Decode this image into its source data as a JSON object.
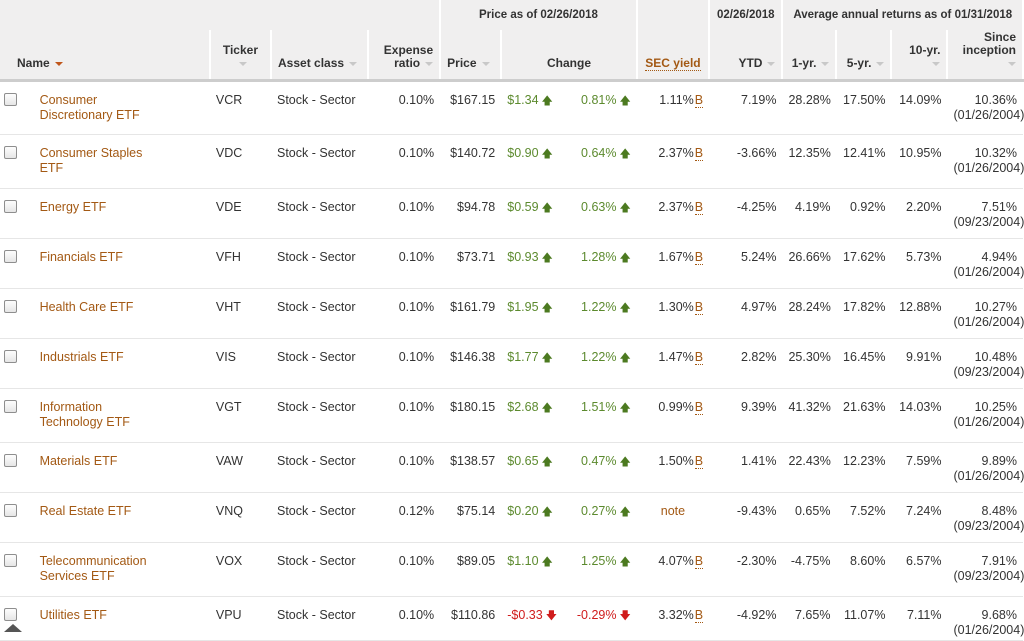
{
  "header": {
    "price_group": "Price as of 02/26/2018",
    "ytd_group": "02/26/2018",
    "returns_group": "Average annual returns as of 01/31/2018",
    "columns": {
      "name": "Name",
      "ticker": "Ticker",
      "asset_class": "Asset class",
      "expense_line1": "Expense",
      "expense_line2": "ratio",
      "price": "Price",
      "change": "Change",
      "sec_yield": "SEC yield",
      "ytd": "YTD",
      "r1": "1-yr.",
      "r5": "5-yr.",
      "r10": "10-yr.",
      "inception_line1": "Since",
      "inception_line2": "inception"
    }
  },
  "colors": {
    "accent": "#a35914",
    "up": "#5c8a2e",
    "down": "#d01c1c",
    "header_bg": "#f0efef"
  },
  "rows": [
    {
      "name_l1": "Consumer",
      "name_l2": "Discretionary ETF",
      "ticker": "VCR",
      "asset": "Stock - Sector",
      "expense": "0.10%",
      "price": "$167.15",
      "chg": "$1.34",
      "chg_pct": "0.81%",
      "dir": "up",
      "sec": "1.11%",
      "sec_b": "B",
      "ytd": "7.19%",
      "r1": "28.28%",
      "r5": "17.50%",
      "r10": "14.09%",
      "inc": "10.36%",
      "inc_date": "(01/26/2004)"
    },
    {
      "name_l1": "Consumer Staples",
      "name_l2": "ETF",
      "ticker": "VDC",
      "asset": "Stock - Sector",
      "expense": "0.10%",
      "price": "$140.72",
      "chg": "$0.90",
      "chg_pct": "0.64%",
      "dir": "up",
      "sec": "2.37%",
      "sec_b": "B",
      "ytd": "-3.66%",
      "r1": "12.35%",
      "r5": "12.41%",
      "r10": "10.95%",
      "inc": "10.32%",
      "inc_date": "(01/26/2004)"
    },
    {
      "name_l1": "Energy ETF",
      "name_l2": "",
      "ticker": "VDE",
      "asset": "Stock - Sector",
      "expense": "0.10%",
      "price": "$94.78",
      "chg": "$0.59",
      "chg_pct": "0.63%",
      "dir": "up",
      "sec": "2.37%",
      "sec_b": "B",
      "ytd": "-4.25%",
      "r1": "4.19%",
      "r5": "0.92%",
      "r10": "2.20%",
      "inc": "7.51%",
      "inc_date": "(09/23/2004)"
    },
    {
      "name_l1": "Financials ETF",
      "name_l2": "",
      "ticker": "VFH",
      "asset": "Stock - Sector",
      "expense": "0.10%",
      "price": "$73.71",
      "chg": "$0.93",
      "chg_pct": "1.28%",
      "dir": "up",
      "sec": "1.67%",
      "sec_b": "B",
      "ytd": "5.24%",
      "r1": "26.66%",
      "r5": "17.62%",
      "r10": "5.73%",
      "inc": "4.94%",
      "inc_date": "(01/26/2004)"
    },
    {
      "name_l1": "Health Care ETF",
      "name_l2": "",
      "ticker": "VHT",
      "asset": "Stock - Sector",
      "expense": "0.10%",
      "price": "$161.79",
      "chg": "$1.95",
      "chg_pct": "1.22%",
      "dir": "up",
      "sec": "1.30%",
      "sec_b": "B",
      "ytd": "4.97%",
      "r1": "28.24%",
      "r5": "17.82%",
      "r10": "12.88%",
      "inc": "10.27%",
      "inc_date": "(01/26/2004)"
    },
    {
      "name_l1": "Industrials ETF",
      "name_l2": "",
      "ticker": "VIS",
      "asset": "Stock - Sector",
      "expense": "0.10%",
      "price": "$146.38",
      "chg": "$1.77",
      "chg_pct": "1.22%",
      "dir": "up",
      "sec": "1.47%",
      "sec_b": "B",
      "ytd": "2.82%",
      "r1": "25.30%",
      "r5": "16.45%",
      "r10": "9.91%",
      "inc": "10.48%",
      "inc_date": "(09/23/2004)"
    },
    {
      "name_l1": "Information",
      "name_l2": "Technology ETF",
      "ticker": "VGT",
      "asset": "Stock - Sector",
      "expense": "0.10%",
      "price": "$180.15",
      "chg": "$2.68",
      "chg_pct": "1.51%",
      "dir": "up",
      "sec": "0.99%",
      "sec_b": "B",
      "ytd": "9.39%",
      "r1": "41.32%",
      "r5": "21.63%",
      "r10": "14.03%",
      "inc": "10.25%",
      "inc_date": "(01/26/2004)"
    },
    {
      "name_l1": "Materials ETF",
      "name_l2": "",
      "ticker": "VAW",
      "asset": "Stock - Sector",
      "expense": "0.10%",
      "price": "$138.57",
      "chg": "$0.65",
      "chg_pct": "0.47%",
      "dir": "up",
      "sec": "1.50%",
      "sec_b": "B",
      "ytd": "1.41%",
      "r1": "22.43%",
      "r5": "12.23%",
      "r10": "7.59%",
      "inc": "9.89%",
      "inc_date": "(01/26/2004)"
    },
    {
      "name_l1": "Real Estate ETF",
      "name_l2": "",
      "ticker": "VNQ",
      "asset": "Stock - Sector",
      "expense": "0.12%",
      "price": "$75.14",
      "chg": "$0.20",
      "chg_pct": "0.27%",
      "dir": "up",
      "sec": "note",
      "sec_b": "",
      "ytd": "-9.43%",
      "r1": "0.65%",
      "r5": "7.52%",
      "r10": "7.24%",
      "inc": "8.48%",
      "inc_date": "(09/23/2004)"
    },
    {
      "name_l1": "Telecommunication",
      "name_l2": "Services ETF",
      "ticker": "VOX",
      "asset": "Stock - Sector",
      "expense": "0.10%",
      "price": "$89.05",
      "chg": "$1.10",
      "chg_pct": "1.25%",
      "dir": "up",
      "sec": "4.07%",
      "sec_b": "B",
      "ytd": "-2.30%",
      "r1": "-4.75%",
      "r5": "8.60%",
      "r10": "6.57%",
      "inc": "7.91%",
      "inc_date": "(09/23/2004)"
    },
    {
      "name_l1": "Utilities ETF",
      "name_l2": "",
      "ticker": "VPU",
      "asset": "Stock - Sector",
      "expense": "0.10%",
      "price": "$110.86",
      "chg": "-$0.33",
      "chg_pct": "-0.29%",
      "dir": "down",
      "sec": "3.32%",
      "sec_b": "B",
      "ytd": "-4.92%",
      "r1": "7.65%",
      "r5": "11.07%",
      "r10": "7.11%",
      "inc": "9.68%",
      "inc_date": "(01/26/2004)"
    }
  ]
}
